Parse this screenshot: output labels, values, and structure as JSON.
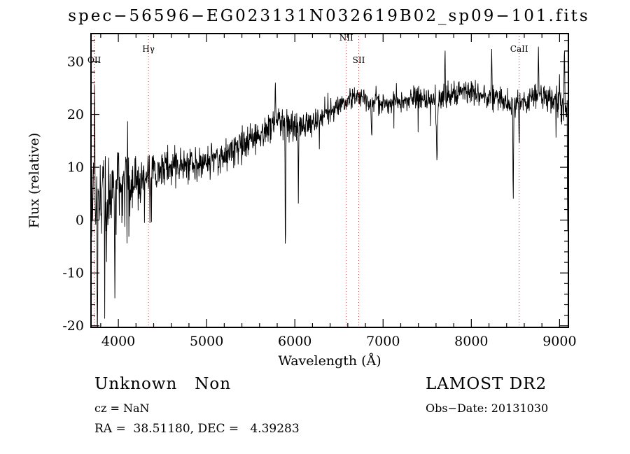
{
  "chart_data": {
    "type": "line",
    "title": "spec−56596−EG023131N032619B02_sp09−101.fits",
    "xlabel": "Wavelength (Å)",
    "ylabel": "Flux (relative)",
    "xlim": [
      3690,
      9100
    ],
    "ylim": [
      -20.3,
      35.3
    ],
    "x_ticks": [
      4000,
      5000,
      6000,
      7000,
      8000,
      9000
    ],
    "y_ticks": [
      -20,
      -10,
      0,
      10,
      20,
      30
    ],
    "x_minor_step": 200,
    "y_minor_step": 2,
    "grid": false,
    "line_color": "#000000",
    "marker_line_color": "#a04848",
    "spectral_lines": [
      {
        "label": "OII",
        "wavelength": 3727,
        "label_level": 2
      },
      {
        "label": "Hγ",
        "wavelength": 4341,
        "label_level": 1
      },
      {
        "label": "NII",
        "wavelength": 6583,
        "label_level": 0
      },
      {
        "label": "SII",
        "wavelength": 6724,
        "label_level": 2
      },
      {
        "label": "CaII",
        "wavelength": 8542,
        "label_level": 1
      }
    ],
    "continuum": [
      [
        3690,
        4
      ],
      [
        3900,
        5
      ],
      [
        4100,
        6.5
      ],
      [
        4300,
        8
      ],
      [
        4500,
        10
      ],
      [
        4800,
        10.5
      ],
      [
        5000,
        11
      ],
      [
        5200,
        12
      ],
      [
        5400,
        14
      ],
      [
        5600,
        16
      ],
      [
        5800,
        19
      ],
      [
        6000,
        17.5
      ],
      [
        6200,
        18.5
      ],
      [
        6400,
        20.5
      ],
      [
        6600,
        22.5
      ],
      [
        6800,
        23
      ],
      [
        7000,
        22
      ],
      [
        7200,
        22.5
      ],
      [
        7400,
        23
      ],
      [
        7600,
        22.5
      ],
      [
        7800,
        24
      ],
      [
        8000,
        24
      ],
      [
        8200,
        23.5
      ],
      [
        8400,
        22.5
      ],
      [
        8600,
        22
      ],
      [
        8800,
        23.5
      ],
      [
        9000,
        22.5
      ],
      [
        9100,
        20
      ]
    ],
    "noise_amp": [
      [
        3690,
        9
      ],
      [
        3800,
        8
      ],
      [
        4000,
        6
      ],
      [
        4200,
        5
      ],
      [
        4400,
        3.5
      ],
      [
        4700,
        3
      ],
      [
        5000,
        2.8
      ],
      [
        5400,
        2.8
      ],
      [
        5800,
        2.8
      ],
      [
        6200,
        2.2
      ],
      [
        6600,
        1.8
      ],
      [
        7000,
        1.8
      ],
      [
        7400,
        2
      ],
      [
        7800,
        2.2
      ],
      [
        8200,
        2.2
      ],
      [
        8600,
        2.2
      ],
      [
        9000,
        3
      ],
      [
        9100,
        4
      ]
    ],
    "features": [
      {
        "wavelength": 3730,
        "delta": 28,
        "width": 4
      },
      {
        "wavelength": 3762,
        "delta": -25,
        "width": 5
      },
      {
        "wavelength": 3845,
        "delta": -22,
        "width": 4
      },
      {
        "wavelength": 3960,
        "delta": -18,
        "width": 4
      },
      {
        "wavelength": 4358,
        "delta": -12,
        "width": 4
      },
      {
        "wavelength": 5780,
        "delta": 8,
        "width": 5
      },
      {
        "wavelength": 5893,
        "delta": -26,
        "width": 5
      },
      {
        "wavelength": 6040,
        "delta": -15,
        "width": 4
      },
      {
        "wavelength": 6870,
        "delta": -6,
        "width": 6
      },
      {
        "wavelength": 7610,
        "delta": -9,
        "width": 10
      },
      {
        "wavelength": 7701,
        "delta": 9,
        "width": 5
      },
      {
        "wavelength": 8230,
        "delta": 9,
        "width": 5
      },
      {
        "wavelength": 8475,
        "delta": -16,
        "width": 6
      },
      {
        "wavelength": 8542,
        "delta": -11,
        "width": 4
      },
      {
        "wavelength": 8760,
        "delta": 10,
        "width": 5
      },
      {
        "wavelength": 9055,
        "delta": 12,
        "width": 5
      },
      {
        "wavelength": 9092,
        "delta": -21,
        "width": 4
      }
    ],
    "seed": 20131030,
    "n_points": 1500
  },
  "footer": {
    "classification": "Unknown   Non",
    "survey": "LAMOST DR2",
    "cz": "cz = NaN",
    "obs_date": "Obs−Date: 20131030",
    "ra_dec": "RA =  38.51180, DEC =   4.39283"
  }
}
